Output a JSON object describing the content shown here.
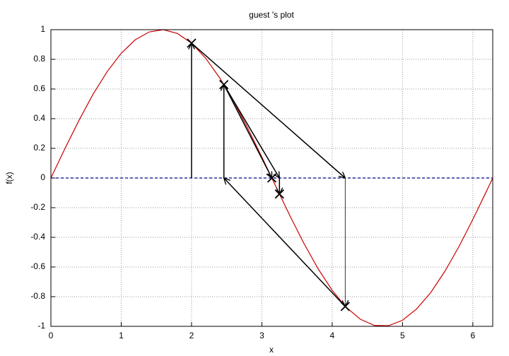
{
  "chart_data": {
    "type": "line",
    "title": "guest 's plot",
    "xlabel": "x",
    "ylabel": "f(x)",
    "xlim": [
      0,
      6.283
    ],
    "ylim": [
      -1,
      1
    ],
    "xticks": [
      0,
      1,
      2,
      3,
      4,
      5,
      6
    ],
    "yticks": [
      -1,
      -0.8,
      -0.6,
      -0.4,
      -0.2,
      0,
      0.2,
      0.4,
      0.6,
      0.8,
      1
    ],
    "grid": true,
    "x": [
      0,
      0.2,
      0.4,
      0.6,
      0.8,
      1.0,
      1.2,
      1.4,
      1.6,
      1.8,
      2.0,
      2.2,
      2.4,
      2.6,
      2.8,
      3.0,
      3.2,
      3.4,
      3.6,
      3.8,
      4.0,
      4.2,
      4.4,
      4.6,
      4.8,
      5.0,
      5.2,
      5.4,
      5.6,
      5.8,
      6.0,
      6.2,
      6.283
    ],
    "series": [
      {
        "color": "#cc0000",
        "values": [
          0,
          0.199,
          0.389,
          0.565,
          0.717,
          0.841,
          0.932,
          0.985,
          1.0,
          0.974,
          0.909,
          0.808,
          0.675,
          0.516,
          0.335,
          0.141,
          -0.058,
          -0.256,
          -0.443,
          -0.612,
          -0.757,
          -0.872,
          -0.952,
          -0.994,
          -0.996,
          -0.959,
          -0.883,
          -0.773,
          -0.631,
          -0.465,
          -0.279,
          -0.083,
          0
        ]
      }
    ],
    "baseline": {
      "value": 0,
      "color": "#00008b"
    },
    "arrows": [
      {
        "x": [
          2,
          2
        ],
        "y": [
          0,
          0.909
        ]
      },
      {
        "x": [
          2,
          4.185
        ],
        "y": [
          0.909,
          0
        ]
      },
      {
        "x": [
          4.185,
          4.185
        ],
        "y": [
          0,
          -0.866
        ]
      },
      {
        "x": [
          4.185,
          2.46
        ],
        "y": [
          -0.866,
          0
        ]
      },
      {
        "x": [
          2.46,
          2.46
        ],
        "y": [
          0,
          0.63
        ]
      },
      {
        "x": [
          2.46,
          3.25
        ],
        "y": [
          0.63,
          0
        ]
      },
      {
        "x": [
          2.46,
          3.142
        ],
        "y": [
          0.63,
          0
        ]
      },
      {
        "x": [
          3.25,
          3.25
        ],
        "y": [
          0,
          -0.108
        ]
      }
    ],
    "markers": {
      "x": [
        2,
        2.46,
        4.185,
        3.25,
        3.142
      ],
      "y": [
        0.909,
        0.63,
        -0.866,
        -0.108,
        0
      ]
    }
  }
}
